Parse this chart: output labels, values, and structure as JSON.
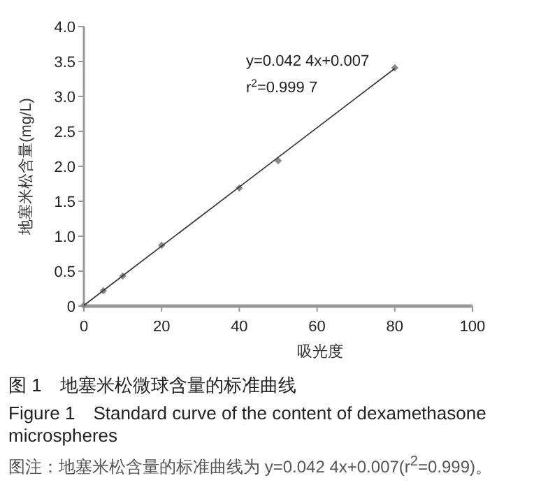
{
  "chart_data": {
    "type": "scatter",
    "title": "图 1　地塞米松微球含量的标准曲线",
    "subtitle": "Figure 1　Standard curve of the content of dexamethasone microspheres",
    "xlabel": "吸光度",
    "ylabel": "地塞米松含量(mg/L)",
    "series": [
      {
        "color": "#8a8a8a",
        "marker": "diamond",
        "x": [
          0,
          5,
          10,
          20,
          40,
          50,
          80
        ],
        "values": [
          0.01,
          0.22,
          0.43,
          0.87,
          1.69,
          2.08,
          3.41
        ]
      },
      {
        "type": "line",
        "color": "#333333",
        "marker": "none",
        "x": [
          0,
          80
        ],
        "values": [
          0.01,
          3.4
        ]
      }
    ],
    "annotations": [
      "y=0.042 4x+0.007",
      "r$^{2}$=0.999 7",
      "图注：地塞米松含量的标准曲线为 y=0.042 4x+0.007(r$^{2}$=0.999)。"
    ],
    "xlim": [
      0,
      100
    ],
    "ylim": [
      0,
      4.0
    ],
    "xticks": [
      0,
      20,
      40,
      60,
      80,
      100
    ],
    "yticks": [
      0,
      {
        "value": 0.5,
        "label": "0.5"
      },
      {
        "value": 1,
        "label": "1.0"
      },
      {
        "value": 1.5,
        "label": "1.5"
      },
      {
        "value": 2,
        "label": "2.0"
      },
      {
        "value": 2.5,
        "label": "2.5"
      },
      {
        "value": 3,
        "label": "3.0"
      },
      {
        "value": 3.5,
        "label": "3.5"
      },
      {
        "value": 4,
        "label": "4.0"
      }
    ],
    "grid": false
  }
}
